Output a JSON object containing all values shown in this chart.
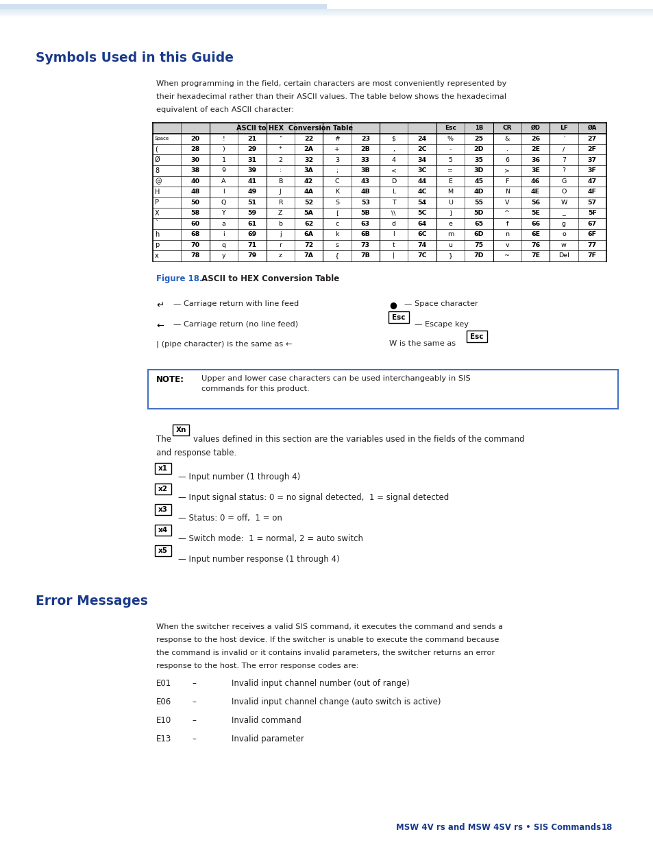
{
  "title1": "Symbols Used in this Guide",
  "title2": "Error Messages",
  "header_color": "#1a3a8a",
  "body_text_color": "#231f20",
  "figure_caption_color": "#2060c0",
  "bg_color": "#ffffff",
  "page_width": 9.54,
  "page_height": 12.35,
  "intro_text": "When programming in the field, certain characters are most conveniently represented by\ntheir hexadecimal rather than their ASCII values. The table below shows the hexadecimal\nequivalent of each ASCII character:",
  "figure_caption_colored": "Figure 18.",
  "figure_caption_black": " ASCII to HEX Conversion Table",
  "note_text": "Upper and lower case characters can be used interchangeably in SIS\ncommands for this product.",
  "var_lines": [
    "— Input number (1 through 4)",
    "— Input signal status: 0 = no signal detected,  1 = signal detected",
    "— Status: 0 = off,  1 = on",
    "— Switch mode:  1 = normal, 2 = auto switch",
    "— Input number response (1 through 4)"
  ],
  "var_labels": [
    "x1",
    "x2",
    "x3",
    "x4",
    "x5"
  ],
  "error_intro_line1": "When the switcher receives a valid SIS command, it executes the command and sends a",
  "error_intro_line2": "response to the host device. If the switcher is unable to execute the command because",
  "error_intro_line3": "the command is invalid or it contains invalid parameters, the switcher returns an error",
  "error_intro_line4": "response to the host. The error response codes are:",
  "error_codes": [
    "E01",
    "E06",
    "E10",
    "E13"
  ],
  "error_dash": "–",
  "error_messages": [
    "Invalid input channel number (out of range)",
    "Invalid input channel change (auto switch is active)",
    "Invalid command",
    "Invalid parameter"
  ],
  "footer_text": "MSW 4V rs and MSW 4SV rs • SIS Commands",
  "footer_page": "18",
  "stripe_color": "#c5d9ed",
  "note_border_color": "#4472c4",
  "table_header_bg": "#d0d0d0",
  "table_row_data": [
    [
      "Space",
      "20",
      "!",
      "21",
      "\"",
      "22",
      "#",
      "23",
      "$",
      "24",
      "%",
      "25",
      "&",
      "26",
      "'",
      "27"
    ],
    [
      "(",
      "28",
      ")",
      "29",
      "*",
      "2A",
      "+",
      "2B",
      ",",
      "2C",
      "-",
      "2D",
      ".",
      "2E",
      "/",
      "2F"
    ],
    [
      "Ø",
      "30",
      "1",
      "31",
      "2",
      "32",
      "3",
      "33",
      "4",
      "34",
      "5",
      "35",
      "6",
      "36",
      "7",
      "37"
    ],
    [
      "8",
      "38",
      "9",
      "39",
      ":",
      "3A",
      ";",
      "3B",
      "<",
      "3C",
      "=",
      "3D",
      ">",
      "3E",
      "?",
      "3F"
    ],
    [
      "@",
      "40",
      "A",
      "41",
      "B",
      "42",
      "C",
      "43",
      "D",
      "44",
      "E",
      "45",
      "F",
      "46",
      "G",
      "47"
    ],
    [
      "H",
      "48",
      "I",
      "49",
      "J",
      "4A",
      "K",
      "4B",
      "L",
      "4C",
      "M",
      "4D",
      "N",
      "4E",
      "O",
      "4F"
    ],
    [
      "P",
      "50",
      "Q",
      "51",
      "R",
      "52",
      "S",
      "53",
      "T",
      "54",
      "U",
      "55",
      "V",
      "56",
      "W",
      "57"
    ],
    [
      "X",
      "58",
      "Y",
      "59",
      "Z",
      "5A",
      "[",
      "5B",
      "\\\\",
      "5C",
      "]",
      "5D",
      "^",
      "5E",
      "_",
      "5F"
    ],
    [
      "`",
      "60",
      "a",
      "61",
      "b",
      "62",
      "c",
      "63",
      "d",
      "64",
      "e",
      "65",
      "f",
      "66",
      "g",
      "67"
    ],
    [
      "h",
      "68",
      "i",
      "69",
      "j",
      "6A",
      "k",
      "6B",
      "l",
      "6C",
      "m",
      "6D",
      "n",
      "6E",
      "o",
      "6F"
    ],
    [
      "p",
      "70",
      "q",
      "71",
      "r",
      "72",
      "s",
      "73",
      "t",
      "74",
      "u",
      "75",
      "v",
      "76",
      "w",
      "77"
    ],
    [
      "x",
      "78",
      "y",
      "79",
      "z",
      "7A",
      "{",
      "7B",
      "|",
      "7C",
      "}",
      "7D",
      "~",
      "7E",
      "Del",
      "7F"
    ]
  ]
}
